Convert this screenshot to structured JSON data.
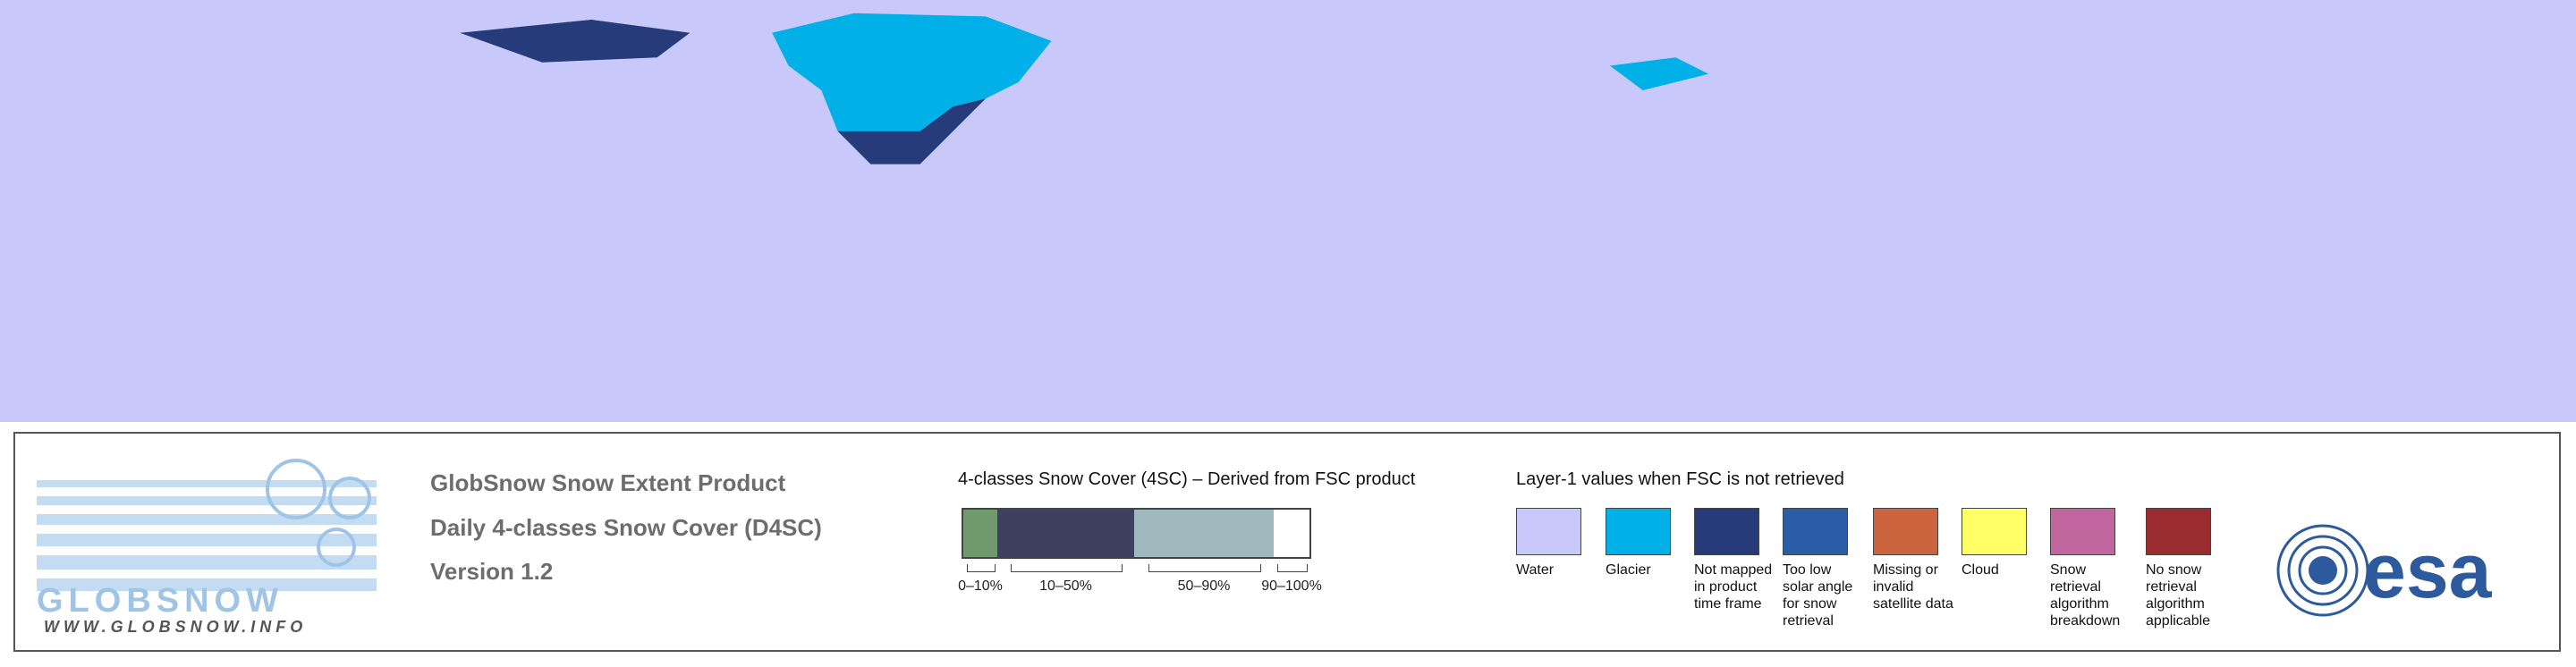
{
  "header": {
    "logo_text": "GLOBSNOW",
    "logo_url": "WWW.GLOBSNOW.INFO",
    "title": "GlobSnow Snow Extent Product",
    "subtitle": "Daily 4-classes Snow Cover (D4SC)",
    "version": "Version 1.2"
  },
  "legend_4sc": {
    "title": "4-classes Snow Cover (4SC) – Derived from FSC product",
    "classes": [
      {
        "label": "0–10%",
        "color": "#6e9a6e"
      },
      {
        "label": "10–50%",
        "color": "#3f3f5f"
      },
      {
        "label": "50–90%",
        "color": "#a0b9bf"
      },
      {
        "label": "90–100%",
        "color": "#ffffff"
      }
    ]
  },
  "legend_layer1": {
    "title": "Layer-1 values when FSC is not retrieved",
    "classes": [
      {
        "label": "Water",
        "color": "#c8c8fa"
      },
      {
        "label": "Glacier",
        "color": "#00b0e6"
      },
      {
        "label": "Not mapped in product time frame",
        "color": "#273a7a"
      },
      {
        "label": "Too low solar angle for snow retrieval",
        "color": "#2a5ca8"
      },
      {
        "label": "Missing or invalid satellite data",
        "color": "#cd6440"
      },
      {
        "label": "Cloud",
        "color": "#ffff66"
      },
      {
        "label": "Snow retrieval algorithm breakdown",
        "color": "#c266a0"
      },
      {
        "label": "No snow retrieval algorithm applicable",
        "color": "#9a2c30"
      }
    ]
  },
  "agency": "esa"
}
